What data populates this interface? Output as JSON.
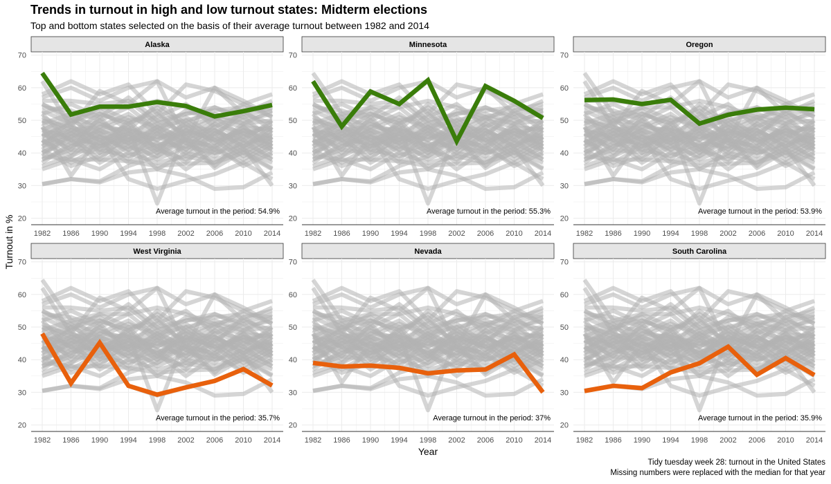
{
  "title": "Trends in turnout in high and low turnout states: Midterm elections",
  "subtitle": "Top and bottom states selected on the basis of their average turnout between 1982 and 2014",
  "caption": {
    "line1": "Tidy tuesday week 28: turnout in the United States",
    "line2": "Missing numbers were replaced with the median for that year"
  },
  "colors": {
    "high": "#3a7d0a",
    "low": "#e8600c",
    "background_lines": "#b3b3b3",
    "strip_fill": "#e5e5e5",
    "grid": "#ebebeb"
  },
  "chart_data": {
    "type": "line",
    "facets": 6,
    "layout": "2 rows x 3 columns",
    "xlabel": "Year",
    "ylabel": "Turnout in %",
    "x": [
      1982,
      1986,
      1990,
      1994,
      1998,
      2002,
      2006,
      2010,
      2014
    ],
    "x_ticks": [
      "1982",
      "1986",
      "1990",
      "1994",
      "1998",
      "2002",
      "2006",
      "2010",
      "2014"
    ],
    "y_ticks": [
      "20",
      "30",
      "40",
      "50",
      "60",
      "70"
    ],
    "ylim": [
      18,
      71
    ],
    "grid": true,
    "panels": [
      {
        "state": "Alaska",
        "group": "high",
        "annotation": "Average turnout in the period: 54.9%",
        "values": [
          64.5,
          51.8,
          54.2,
          54.2,
          55.6,
          54.4,
          51.2,
          52.8,
          54.7
        ]
      },
      {
        "state": "Minnesota",
        "group": "high",
        "annotation": "Average turnout in the period: 55.3%",
        "values": [
          62.0,
          48.1,
          58.8,
          55.0,
          62.3,
          43.6,
          60.5,
          56.0,
          50.7
        ]
      },
      {
        "state": "Oregon",
        "group": "high",
        "annotation": "Average turnout in the period: 53.9%",
        "values": [
          56.2,
          56.4,
          55.0,
          56.3,
          49.0,
          51.7,
          53.3,
          53.9,
          53.4
        ]
      },
      {
        "state": "West Virginia",
        "group": "low",
        "annotation": "Average turnout in the period: 35.7%",
        "values": [
          48.0,
          32.8,
          45.2,
          32.0,
          29.3,
          31.5,
          33.5,
          37.1,
          32.1
        ]
      },
      {
        "state": "Nevada",
        "group": "low",
        "annotation": "Average turnout in the period: 37%",
        "values": [
          39.0,
          37.9,
          38.2,
          37.5,
          35.8,
          36.7,
          37.0,
          41.6,
          30.0
        ]
      },
      {
        "state": "South Carolina",
        "group": "low",
        "annotation": "Average turnout in the period: 35.9%",
        "values": [
          30.4,
          32.0,
          31.3,
          36.1,
          38.9,
          44.0,
          35.4,
          40.5,
          35.3
        ]
      }
    ],
    "background_series": [
      [
        64.5,
        52,
        54,
        54,
        56,
        54,
        51,
        53,
        55
      ],
      [
        62,
        48,
        59,
        55,
        62,
        44,
        60,
        56,
        51
      ],
      [
        56,
        56,
        55,
        56,
        49,
        52,
        53,
        54,
        53
      ],
      [
        58,
        62,
        58,
        61,
        52,
        61,
        59,
        55,
        58
      ],
      [
        57,
        60,
        56,
        60,
        62,
        57,
        60,
        52,
        56
      ],
      [
        30.5,
        32,
        31,
        34,
        35,
        33,
        29,
        29.5,
        34
      ],
      [
        48,
        33,
        45,
        32,
        29,
        31.5,
        33.5,
        37,
        32
      ],
      [
        39,
        38,
        38,
        37.5,
        36,
        36.7,
        37,
        41.6,
        30
      ],
      [
        30.4,
        32,
        31.3,
        36,
        39,
        44,
        35.4,
        40.5,
        35.3
      ],
      [
        45,
        50,
        46,
        48,
        24.5,
        47,
        44,
        46,
        42
      ],
      [
        52,
        55,
        51,
        57,
        50,
        52,
        54,
        51,
        54
      ],
      [
        42,
        45,
        47,
        43,
        46,
        40,
        46,
        44,
        41
      ],
      [
        47,
        44,
        49,
        45,
        42,
        46,
        47,
        43,
        45
      ],
      [
        50,
        46,
        52,
        49,
        53,
        44,
        50,
        48,
        47
      ],
      [
        38,
        41,
        40,
        44,
        38,
        42,
        40,
        43,
        39
      ],
      [
        44,
        47,
        42,
        46,
        44,
        49,
        43,
        47,
        44
      ],
      [
        49,
        52,
        47,
        51,
        48,
        50,
        52,
        49,
        50
      ],
      [
        36,
        39,
        43,
        37,
        41,
        38,
        42,
        36,
        40
      ],
      [
        46,
        42,
        45,
        41,
        47,
        43,
        41,
        45,
        43
      ],
      [
        53,
        49,
        54,
        50,
        51,
        55,
        48,
        52,
        49
      ],
      [
        41,
        36,
        39,
        43,
        35,
        40,
        38,
        41,
        37
      ],
      [
        43,
        48,
        44,
        47,
        45,
        41,
        47,
        42,
        46
      ],
      [
        55,
        51,
        53,
        47,
        55,
        49,
        54,
        50,
        52
      ],
      [
        40,
        44,
        37,
        42,
        39,
        45,
        36,
        44,
        38
      ],
      [
        47,
        45,
        50,
        44,
        49,
        43,
        49,
        46,
        48
      ],
      [
        44,
        39,
        46,
        40,
        43,
        37,
        45,
        39,
        44
      ],
      [
        51,
        47,
        48,
        52,
        46,
        51,
        45,
        53,
        47
      ],
      [
        37,
        43,
        41,
        39,
        42,
        35,
        41,
        37,
        42
      ],
      [
        49,
        44,
        43,
        49,
        41,
        48,
        43,
        48,
        41
      ],
      [
        42,
        50,
        49,
        46,
        50,
        46,
        51,
        45,
        49
      ],
      [
        35,
        38,
        35,
        40,
        37,
        39,
        37,
        40,
        35
      ],
      [
        54,
        53,
        50,
        54,
        47,
        53,
        50,
        55,
        51
      ],
      [
        46,
        41,
        51,
        42,
        48,
        44,
        42,
        47,
        45
      ],
      [
        39,
        46,
        42,
        45,
        40,
        47,
        44,
        38,
        43
      ],
      [
        45,
        49,
        40,
        48,
        43,
        42,
        48,
        41,
        47
      ],
      [
        52,
        43,
        47,
        44,
        52,
        45,
        46,
        51,
        44
      ],
      [
        41,
        47,
        44,
        38,
        46,
        43,
        39,
        46,
        40
      ],
      [
        48,
        40,
        48,
        47,
        44,
        48,
        47,
        42,
        48
      ],
      [
        43,
        46,
        41,
        50,
        41,
        44,
        42,
        49,
        46
      ],
      [
        50,
        48,
        45,
        43,
        48,
        41,
        49,
        44,
        50
      ],
      [
        38,
        42,
        46,
        41,
        45,
        46,
        40,
        42,
        38
      ],
      [
        47,
        51,
        43,
        46,
        40,
        50,
        44,
        47,
        43
      ],
      [
        44,
        37,
        42,
        44,
        47,
        39,
        46,
        40,
        45
      ],
      [
        55,
        50,
        52,
        49,
        54,
        48,
        51,
        49,
        53
      ],
      [
        40,
        45,
        38,
        46,
        42,
        47,
        41,
        48,
        42
      ]
    ]
  }
}
